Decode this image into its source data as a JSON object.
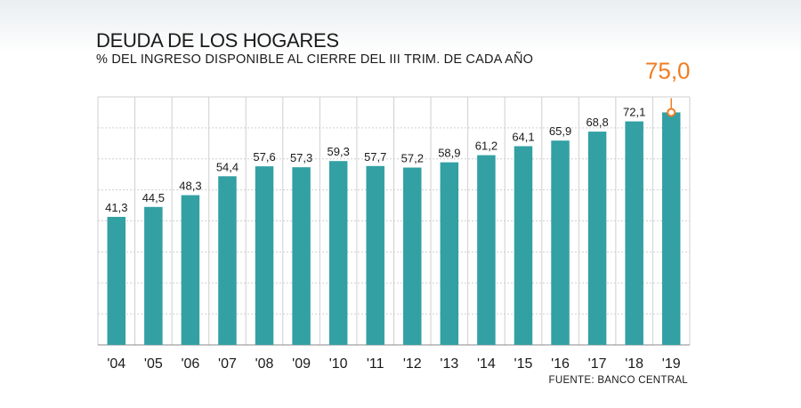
{
  "chart_data": {
    "type": "bar",
    "title": "DEUDA DE LOS HOGARES",
    "subtitle": "% DEL INGRESO DISPONIBLE AL CIERRE DEL III TRIM. DE CADA AÑO",
    "source": "FUENTE: BANCO CENTRAL",
    "categories": [
      "'04",
      "'05",
      "'06",
      "'07",
      "'08",
      "'09",
      "'10",
      "'11",
      "'12",
      "'13",
      "'14",
      "'15",
      "'16",
      "'17",
      "'18",
      "'19"
    ],
    "values": [
      41.3,
      44.5,
      48.3,
      54.4,
      57.6,
      57.3,
      59.3,
      57.7,
      57.2,
      58.9,
      61.2,
      64.1,
      65.9,
      68.8,
      72.1,
      75.0
    ],
    "value_labels": [
      "41,3",
      "44,5",
      "48,3",
      "54,4",
      "57,6",
      "57,3",
      "59,3",
      "57,7",
      "57,2",
      "58,9",
      "61,2",
      "64,1",
      "65,9",
      "68,8",
      "72,1",
      "75,0"
    ],
    "highlight_index": 15,
    "ylim": [
      0,
      80
    ],
    "y_grid_step": 10,
    "grid": true,
    "colors": {
      "bar": "#33a0a4",
      "highlight": "#f07d22",
      "grid": "#cfcfcf"
    }
  }
}
